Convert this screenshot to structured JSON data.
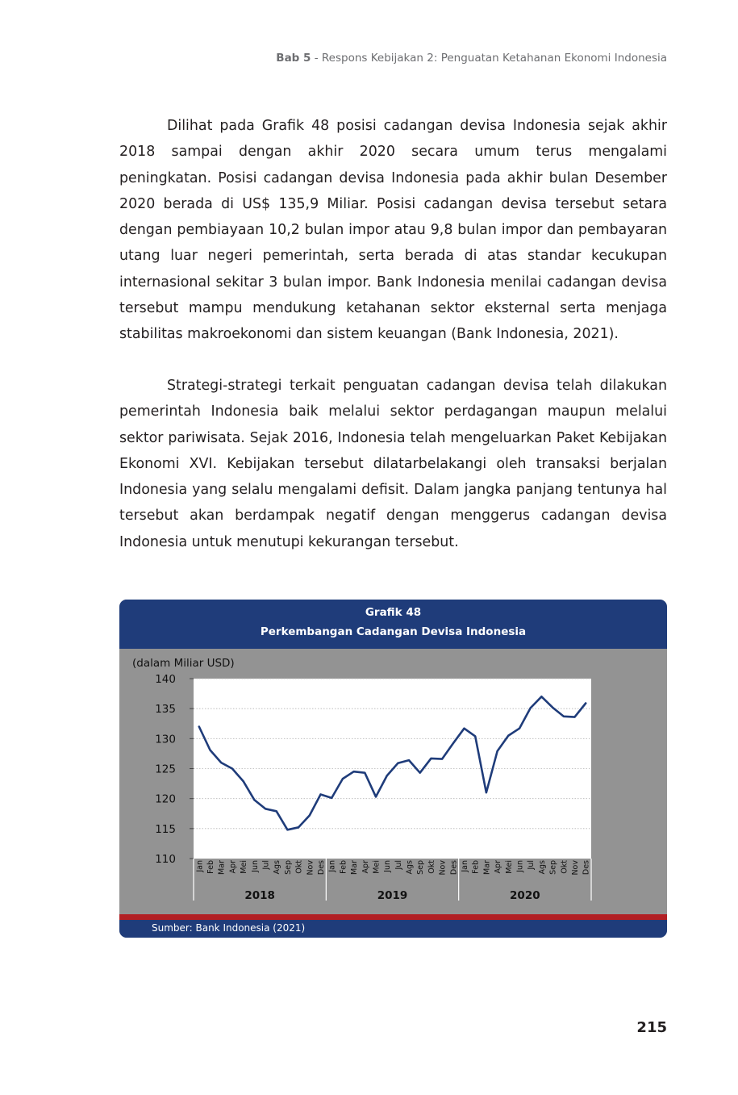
{
  "header": {
    "chapter": "Bab 5",
    "title": " - Respons Kebijakan 2: Penguatan Ketahanan Ekonomi Indonesia"
  },
  "paragraphs": [
    "Dilihat pada Grafik 48 posisi cadangan devisa Indonesia sejak akhir 2018 sampai dengan akhir 2020 secara umum terus mengalami peningkatan. Posisi cadangan devisa Indonesia pada akhir bulan Desember 2020 berada di US$ 135,9 Miliar. Posisi cadangan devisa tersebut setara dengan pembiayaan 10,2 bulan impor atau 9,8 bulan impor dan pembayaran utang luar negeri pemerintah, serta berada di atas standar kecukupan internasional sekitar 3 bulan impor. Bank Indonesia menilai cadangan devisa tersebut mampu mendukung ketahanan sektor eksternal serta menjaga stabilitas makroekonomi dan sistem keuangan (Bank Indonesia, 2021).",
    "Strategi-strategi terkait penguatan cadangan devisa telah dilakukan pemerintah Indonesia baik melalui sektor perdagangan maupun melalui sektor pariwisata. Sejak 2016, Indonesia telah mengeluarkan Paket Kebijakan Ekonomi XVI. Kebijakan tersebut dilatarbelakangi oleh transaksi berjalan Indonesia yang selalu mengalami defisit. Dalam jangka panjang tentunya hal tersebut akan berdampak negatif dengan menggerus cadangan devisa Indonesia untuk menutupi kekurangan tersebut."
  ],
  "chart_box": {
    "title_line1": "Grafik 48",
    "title_line2": "Perkembangan Cadangan Devisa Indonesia",
    "source": "Sumber: Bank Indonesia (2021)",
    "header_color": "#1f3c7a",
    "accent_color": "#b21f24",
    "background_color": "#939393"
  },
  "chart_data": {
    "type": "line",
    "title": "Perkembangan Cadangan Devisa Indonesia",
    "ylabel": "(dalam Miliar USD)",
    "xlabel": "",
    "ylim": [
      110,
      140
    ],
    "yticks": [
      110,
      115,
      120,
      125,
      130,
      135,
      140
    ],
    "grid": true,
    "months": [
      "Jan",
      "Feb",
      "Mar",
      "Apr",
      "Mei",
      "Jun",
      "Jul",
      "Ags",
      "Sep",
      "Okt",
      "Nov",
      "Des",
      "Jan",
      "Feb",
      "Mar",
      "Apr",
      "Mei",
      "Jun",
      "Jul",
      "Ags",
      "Sep",
      "Okt",
      "Nov",
      "Des",
      "Jan",
      "Feb",
      "Mar",
      "Apr",
      "Mei",
      "Jun",
      "Jul",
      "Ags",
      "Sep",
      "Okt",
      "Nov",
      "Des"
    ],
    "years": [
      "2018",
      "2019",
      "2020"
    ],
    "series": [
      {
        "color": "#1f3c7a",
        "values": [
          132.0,
          128.1,
          126.0,
          125.0,
          122.9,
          119.8,
          118.3,
          117.9,
          114.8,
          115.2,
          117.2,
          120.7,
          120.1,
          123.3,
          124.5,
          124.3,
          120.3,
          123.8,
          125.9,
          126.4,
          124.3,
          126.7,
          126.6,
          129.2,
          131.7,
          130.4,
          121.0,
          127.9,
          130.5,
          131.7,
          135.1,
          137.0,
          135.2,
          133.7,
          133.6,
          135.9
        ]
      }
    ]
  },
  "page_number": "215"
}
